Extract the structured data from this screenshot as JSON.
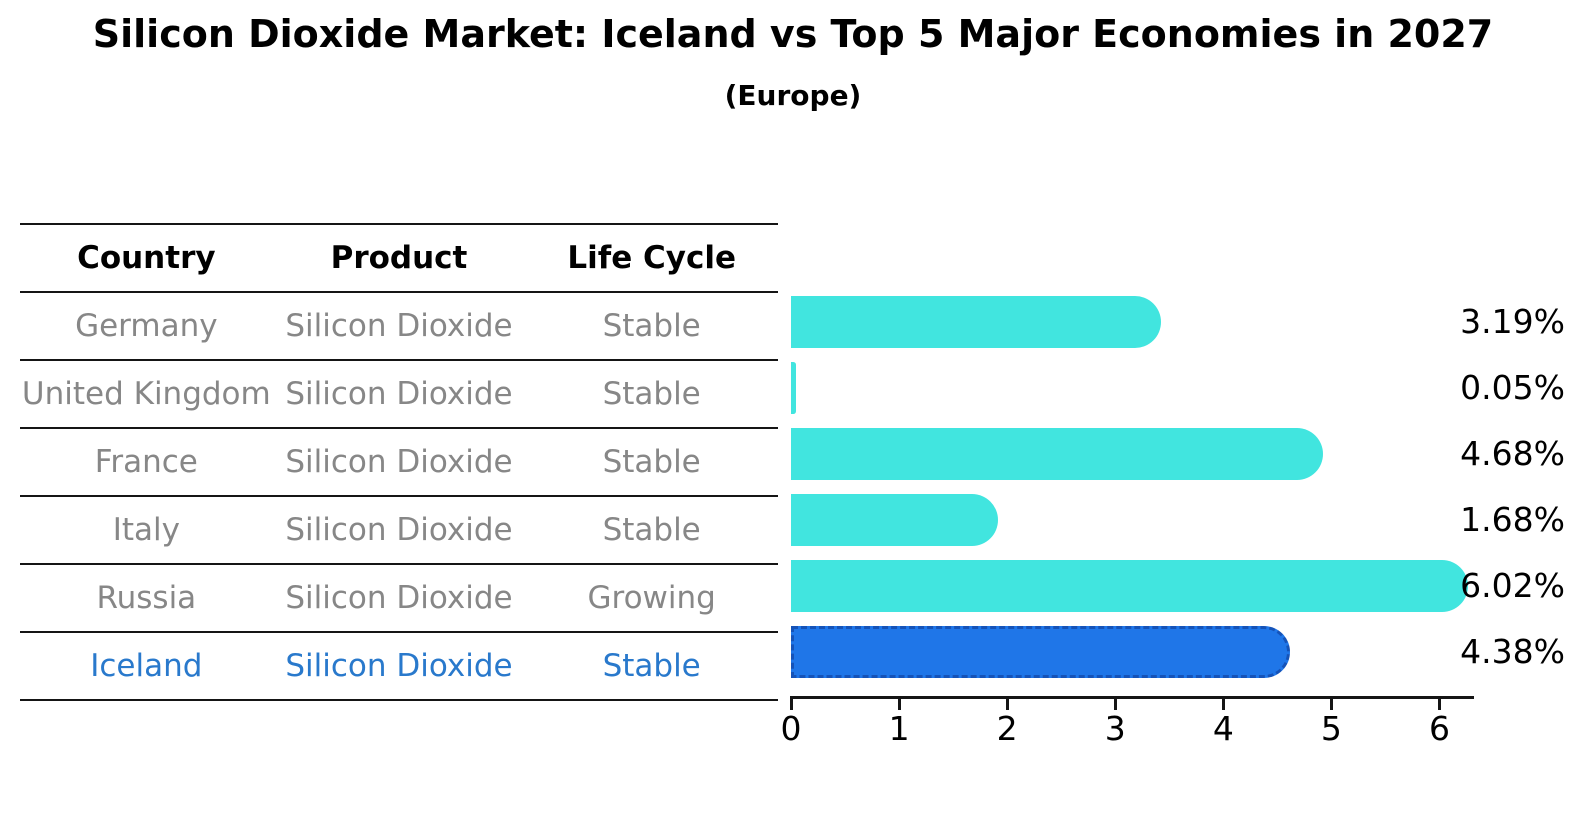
{
  "title": "Silicon Dioxide Market: Iceland vs Top 5 Major Economies in 2027",
  "subtitle": "(Europe)",
  "table": {
    "headers": [
      "Country",
      "Product",
      "Life Cycle"
    ],
    "rows": [
      {
        "country": "Germany",
        "product": "Silicon Dioxide",
        "life_cycle": "Stable",
        "highlighted": false
      },
      {
        "country": "United Kingdom",
        "product": "Silicon Dioxide",
        "life_cycle": "Stable",
        "highlighted": false
      },
      {
        "country": "France",
        "product": "Silicon Dioxide",
        "life_cycle": "Stable",
        "highlighted": false
      },
      {
        "country": "Italy",
        "product": "Silicon Dioxide",
        "life_cycle": "Stable",
        "highlighted": false
      },
      {
        "country": "Russia",
        "product": "Silicon Dioxide",
        "life_cycle": "Growing",
        "highlighted": false
      },
      {
        "country": "Iceland",
        "product": "Silicon Dioxide",
        "life_cycle": "Stable",
        "highlighted": true
      }
    ]
  },
  "chart_data": {
    "type": "bar",
    "orientation": "horizontal",
    "title": "Silicon Dioxide Market: Iceland vs Top 5 Major Economies in 2027",
    "subtitle": "(Europe)",
    "categories": [
      "Germany",
      "United Kingdom",
      "France",
      "Italy",
      "Russia",
      "Iceland"
    ],
    "values": [
      3.19,
      0.05,
      4.68,
      1.68,
      6.02,
      4.38
    ],
    "value_labels": [
      "3.19%",
      "0.05%",
      "4.68%",
      "1.68%",
      "6.02%",
      "4.38%"
    ],
    "unit": "%",
    "xlim": [
      0,
      6.31
    ],
    "xticks": [
      0,
      1,
      2,
      3,
      4,
      5,
      6
    ],
    "grid": false,
    "legend": "none",
    "highlight_index": 5
  },
  "colors": {
    "bar": "#41E5DF",
    "highlight_bar": "#1F76E8",
    "highlight_edge": "#1553B8",
    "table_text": "#878787",
    "highlight_text": "#2979CC",
    "axis": "#151515",
    "title_text": "#000000"
  }
}
